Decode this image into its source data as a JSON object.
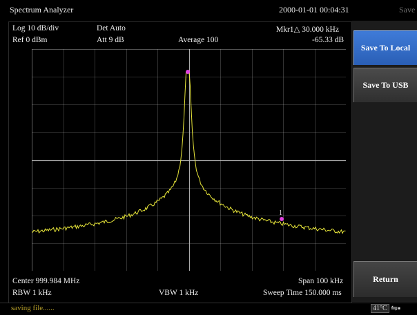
{
  "header": {
    "app_title": "Spectrum Analyzer",
    "datetime": "2000-01-01 00:04:31",
    "tab_label": "Save"
  },
  "settings": {
    "scale": "Log 10 dB/div",
    "detector": "Det Auto",
    "ref_level": "Ref 0 dBm",
    "attenuation": "Att 9 dB",
    "average": "Average 100",
    "center": "Center 999.984 MHz",
    "span": "Span 100 kHz",
    "rbw": "RBW 1 kHz",
    "vbw": "VBW 1 kHz",
    "sweep_time": "Sweep Time 150.000 ms"
  },
  "marker": {
    "label": "Mkr1△ 30.000 kHz",
    "value": "-65.33 dB",
    "number": "1"
  },
  "softkeys": {
    "save_local": "Save To Local",
    "save_usb": "Save To USB",
    "return": "Return"
  },
  "status": {
    "message": "saving file......",
    "temperature": "41°C",
    "usb_icon": "usb-icon"
  },
  "colors": {
    "trace": "#e8e63a",
    "marker": "#e040e0",
    "grid": "#bdbdbd",
    "active_key": "#3670c8"
  }
}
